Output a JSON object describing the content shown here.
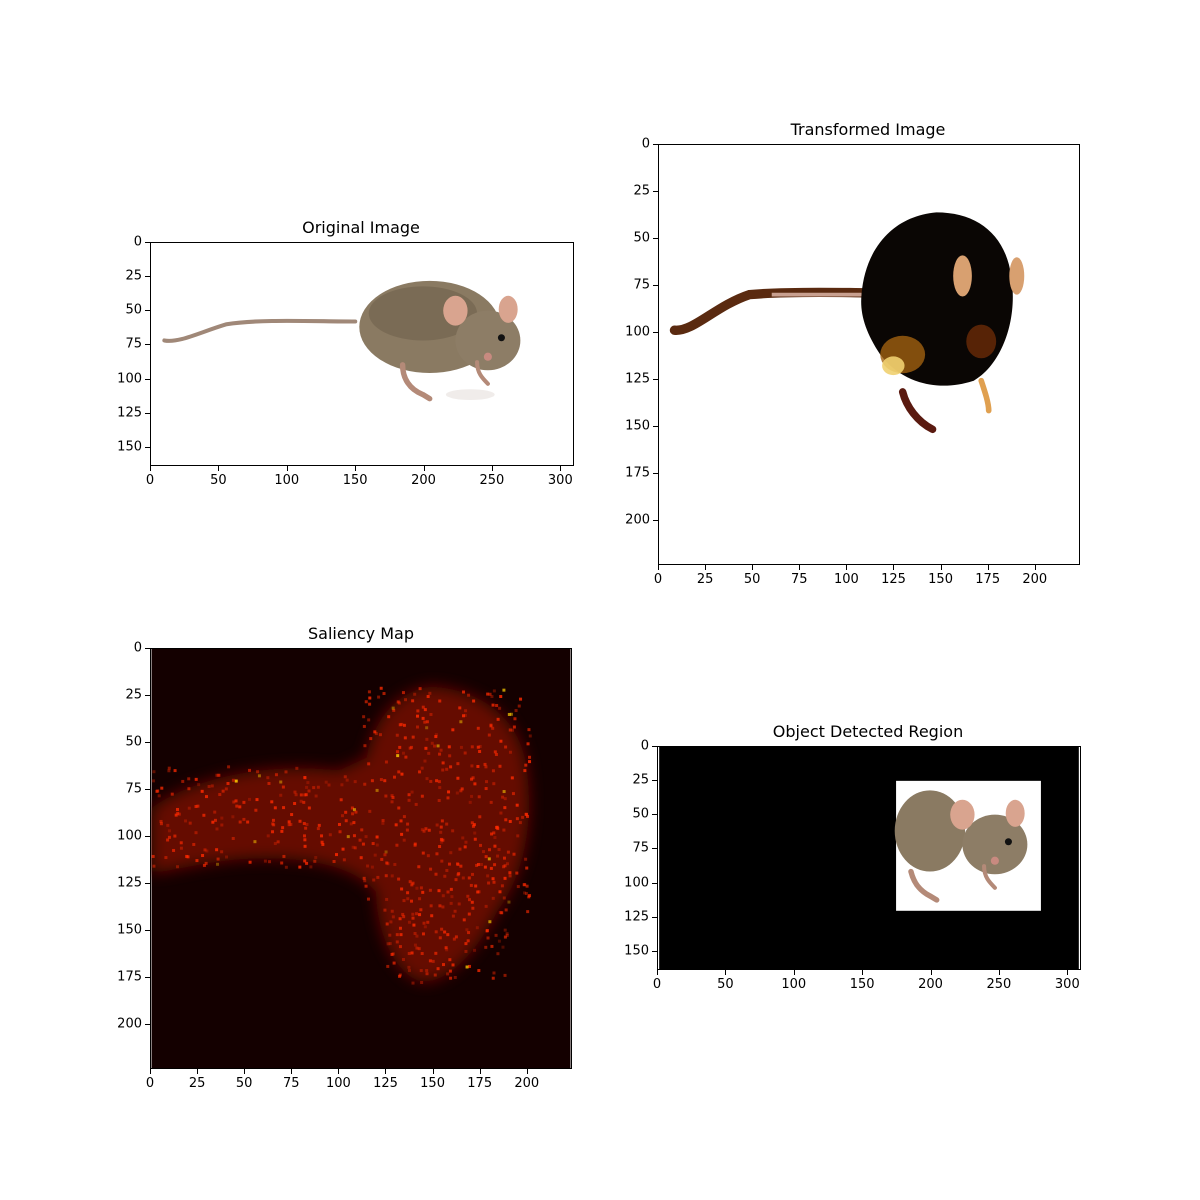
{
  "figure": {
    "panels": [
      {
        "id": "original",
        "title": "Original Image",
        "x_ticks": [
          "0",
          "50",
          "100",
          "150",
          "200",
          "250",
          "300"
        ],
        "y_ticks": [
          "0",
          "25",
          "50",
          "75",
          "100",
          "125",
          "150"
        ],
        "xlim": [
          0,
          310
        ],
        "ylim": [
          0,
          164
        ]
      },
      {
        "id": "transformed",
        "title": "Transformed Image",
        "x_ticks": [
          "0",
          "25",
          "50",
          "75",
          "100",
          "125",
          "150",
          "175",
          "200"
        ],
        "y_ticks": [
          "0",
          "25",
          "50",
          "75",
          "100",
          "125",
          "150",
          "175",
          "200"
        ],
        "xlim": [
          0,
          224
        ],
        "ylim": [
          0,
          224
        ]
      },
      {
        "id": "saliency",
        "title": "Saliency Map",
        "x_ticks": [
          "0",
          "25",
          "50",
          "75",
          "100",
          "125",
          "150",
          "175",
          "200"
        ],
        "y_ticks": [
          "0",
          "25",
          "50",
          "75",
          "100",
          "125",
          "150",
          "175",
          "200"
        ],
        "xlim": [
          0,
          224
        ],
        "ylim": [
          0,
          224
        ],
        "colormap": "hot"
      },
      {
        "id": "detected",
        "title": "Object Detected Region",
        "x_ticks": [
          "0",
          "50",
          "100",
          "150",
          "200",
          "250",
          "300"
        ],
        "y_ticks": [
          "0",
          "25",
          "50",
          "75",
          "100",
          "125",
          "150"
        ],
        "xlim": [
          0,
          310
        ],
        "ylim": [
          0,
          164
        ],
        "detected_box": {
          "x0": 175,
          "y0": 25,
          "x1": 282,
          "y1": 121
        }
      }
    ],
    "colors": {
      "mouse_fur": "#8a7a62",
      "mouse_fur_dark": "#5e5240",
      "ear_pink": "#d9a48f",
      "tail": "#a08878",
      "saliency_bg": "#140000",
      "saliency_hot": "#ff2a00",
      "saliency_peak": "#ffd000"
    }
  }
}
